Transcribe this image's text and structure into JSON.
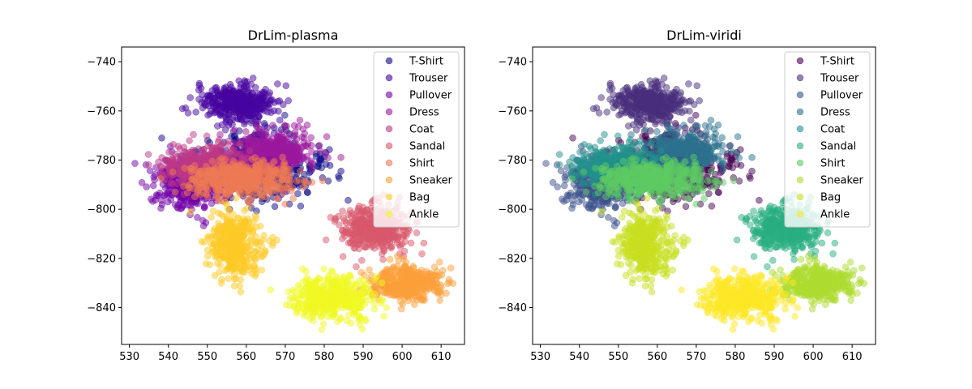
{
  "chart_data": [
    {
      "type": "scatter",
      "title": "DrLim-plasma",
      "xlabel": "",
      "ylabel": "",
      "xlim": [
        528,
        616
      ],
      "ylim": [
        -855,
        -734
      ],
      "xticks": [
        530,
        540,
        550,
        560,
        570,
        580,
        590,
        600,
        610
      ],
      "yticks": [
        -740,
        -760,
        -780,
        -800,
        -820,
        -840
      ],
      "legend_position": "top-right",
      "series": [
        {
          "name": "T-Shirt",
          "color": "#0d0887",
          "cx": 563,
          "cy": -783,
          "sx": 8.0,
          "sy": 7.0,
          "n": 500
        },
        {
          "name": "Trouser",
          "color": "#46039f",
          "cx": 558,
          "cy": -757,
          "sx": 4.5,
          "sy": 4.0,
          "n": 420
        },
        {
          "name": "Pullover",
          "color": "#7201a8",
          "cx": 546,
          "cy": -789,
          "sx": 5.0,
          "sy": 5.5,
          "n": 420
        },
        {
          "name": "Dress",
          "color": "#9c179e",
          "cx": 567,
          "cy": -777,
          "sx": 5.0,
          "sy": 4.5,
          "n": 420
        },
        {
          "name": "Coat",
          "color": "#bd3786",
          "cx": 549,
          "cy": -782,
          "sx": 5.5,
          "sy": 4.0,
          "n": 420
        },
        {
          "name": "Sandal",
          "color": "#d8576b",
          "cx": 593,
          "cy": -808,
          "sx": 4.5,
          "sy": 4.5,
          "n": 420
        },
        {
          "name": "Shirt",
          "color": "#ed7953",
          "cx": 559,
          "cy": -788,
          "sx": 7.0,
          "sy": 3.5,
          "n": 500
        },
        {
          "name": "Sneaker",
          "color": "#fb9f3a",
          "cx": 601,
          "cy": -830,
          "sx": 4.5,
          "sy": 3.5,
          "n": 420
        },
        {
          "name": "Bag",
          "color": "#fdca26",
          "cx": 557,
          "cy": -815,
          "sx": 3.5,
          "sy": 6.0,
          "n": 420
        },
        {
          "name": "Ankle",
          "color": "#f0f921",
          "cx": 582,
          "cy": -836,
          "sx": 5.0,
          "sy": 4.5,
          "n": 450
        }
      ]
    },
    {
      "type": "scatter",
      "title": "DrLim-viridi",
      "xlabel": "",
      "ylabel": "",
      "xlim": [
        528,
        616
      ],
      "ylim": [
        -855,
        -734
      ],
      "xticks": [
        530,
        540,
        550,
        560,
        570,
        580,
        590,
        600,
        610
      ],
      "yticks": [
        -740,
        -760,
        -780,
        -800,
        -820,
        -840
      ],
      "legend_position": "top-right",
      "series": [
        {
          "name": "T-Shirt",
          "color": "#440154",
          "cx": 563,
          "cy": -783,
          "sx": 8.0,
          "sy": 7.0,
          "n": 500
        },
        {
          "name": "Trouser",
          "color": "#472d7b",
          "cx": 558,
          "cy": -757,
          "sx": 4.5,
          "sy": 4.0,
          "n": 420
        },
        {
          "name": "Pullover",
          "color": "#3b528b",
          "cx": 546,
          "cy": -789,
          "sx": 5.0,
          "sy": 5.5,
          "n": 420
        },
        {
          "name": "Dress",
          "color": "#2c728e",
          "cx": 567,
          "cy": -777,
          "sx": 5.0,
          "sy": 4.5,
          "n": 420
        },
        {
          "name": "Coat",
          "color": "#21918c",
          "cx": 549,
          "cy": -782,
          "sx": 5.5,
          "sy": 4.0,
          "n": 420
        },
        {
          "name": "Sandal",
          "color": "#28ae80",
          "cx": 593,
          "cy": -808,
          "sx": 4.5,
          "sy": 4.5,
          "n": 420
        },
        {
          "name": "Shirt",
          "color": "#5ec962",
          "cx": 559,
          "cy": -788,
          "sx": 7.0,
          "sy": 3.5,
          "n": 500
        },
        {
          "name": "Sneaker",
          "color": "#addc30",
          "cx": 601,
          "cy": -830,
          "sx": 4.5,
          "sy": 3.5,
          "n": 420
        },
        {
          "name": "Bag",
          "color": "#c8e020",
          "cx": 557,
          "cy": -815,
          "sx": 3.5,
          "sy": 6.0,
          "n": 420
        },
        {
          "name": "Ankle",
          "color": "#fde725",
          "cx": 582,
          "cy": -836,
          "sx": 5.0,
          "sy": 4.5,
          "n": 450
        }
      ]
    }
  ]
}
